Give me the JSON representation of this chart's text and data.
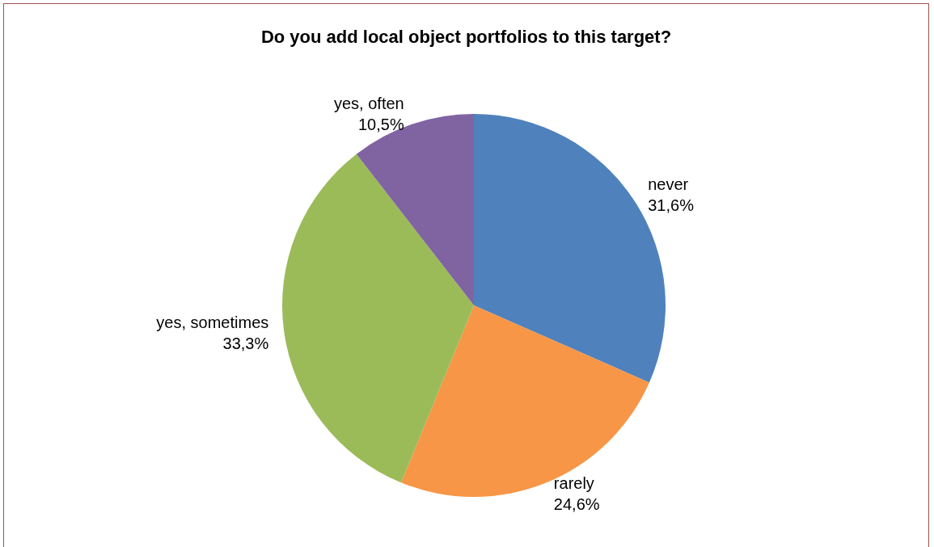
{
  "chart_data": {
    "type": "pie",
    "title": "Do you add local object portfolios to this target?",
    "categories": [
      "never",
      "rarely",
      "yes, sometimes",
      "yes, often"
    ],
    "values": [
      31.6,
      24.6,
      33.3,
      10.5
    ],
    "value_labels": [
      "31,6%",
      "24,6%",
      "33,3%",
      "10,5%"
    ],
    "colors": [
      "#4f81bd",
      "#f79646",
      "#9bbb59",
      "#8064a2"
    ],
    "legend": false
  }
}
